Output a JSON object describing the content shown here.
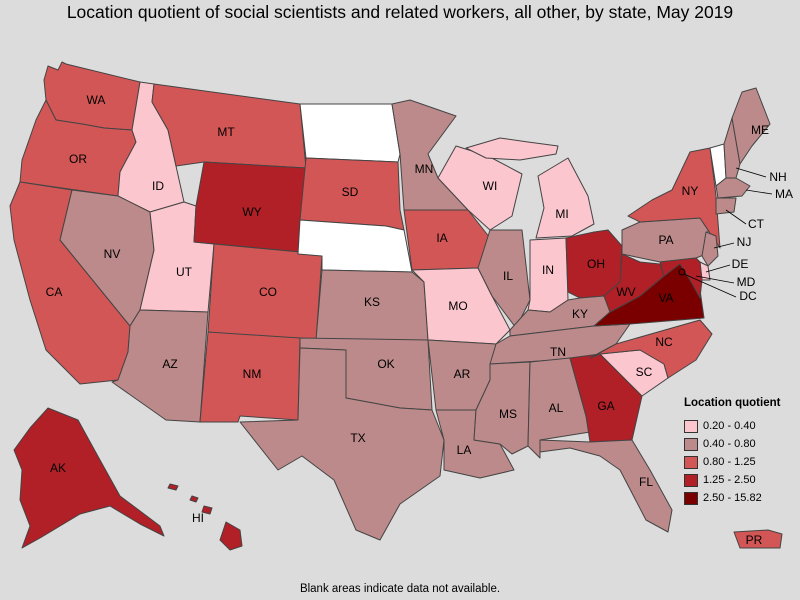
{
  "title": "Location quotient of social scientists and related workers, all other, by state, May 2019",
  "footnote": "Blank areas indicate data not available.",
  "colors": {
    "c1": "#fcc6cf",
    "c2": "#bc8a8a",
    "c3": "#d35656",
    "c4": "#b11f27",
    "c5": "#7a0000",
    "nodata": "#ffffff"
  },
  "legend": {
    "title": "Location quotient",
    "items": [
      {
        "label": "0.20 - 0.40",
        "color": "#fcc6cf"
      },
      {
        "label": "0.40 - 0.80",
        "color": "#bc8a8a"
      },
      {
        "label": "0.80 - 1.25",
        "color": "#d35656"
      },
      {
        "label": "1.25 - 2.50",
        "color": "#b11f27"
      },
      {
        "label": "2.50 - 15.82",
        "color": "#7a0000"
      }
    ]
  },
  "states": {
    "WA": {
      "label": "WA",
      "class": "0.80 - 1.25"
    },
    "OR": {
      "label": "OR",
      "class": "0.80 - 1.25"
    },
    "CA": {
      "label": "CA",
      "class": "0.80 - 1.25"
    },
    "ID": {
      "label": "ID",
      "class": "0.20 - 0.40"
    },
    "NV": {
      "label": "NV",
      "class": "0.40 - 0.80"
    },
    "UT": {
      "label": "UT",
      "class": "0.20 - 0.40"
    },
    "AZ": {
      "label": "AZ",
      "class": "0.40 - 0.80"
    },
    "MT": {
      "label": "MT",
      "class": "0.80 - 1.25"
    },
    "WY": {
      "label": "WY",
      "class": "1.25 - 2.50"
    },
    "CO": {
      "label": "CO",
      "class": "0.80 - 1.25"
    },
    "NM": {
      "label": "NM",
      "class": "0.80 - 1.25"
    },
    "ND": {
      "label": "",
      "class": "none"
    },
    "SD": {
      "label": "SD",
      "class": "0.80 - 1.25"
    },
    "NE": {
      "label": "",
      "class": "none"
    },
    "KS": {
      "label": "KS",
      "class": "0.40 - 0.80"
    },
    "OK": {
      "label": "OK",
      "class": "0.40 - 0.80"
    },
    "TX": {
      "label": "TX",
      "class": "0.40 - 0.80"
    },
    "MN": {
      "label": "MN",
      "class": "0.40 - 0.80"
    },
    "IA": {
      "label": "IA",
      "class": "0.80 - 1.25"
    },
    "MO": {
      "label": "MO",
      "class": "0.20 - 0.40"
    },
    "AR": {
      "label": "AR",
      "class": "0.40 - 0.80"
    },
    "LA": {
      "label": "LA",
      "class": "0.40 - 0.80"
    },
    "WI": {
      "label": "WI",
      "class": "0.20 - 0.40"
    },
    "IL": {
      "label": "IL",
      "class": "0.40 - 0.80"
    },
    "MI": {
      "label": "MI",
      "class": "0.20 - 0.40"
    },
    "IN": {
      "label": "IN",
      "class": "0.20 - 0.40"
    },
    "OH": {
      "label": "OH",
      "class": "1.25 - 2.50"
    },
    "KY": {
      "label": "KY",
      "class": "0.40 - 0.80"
    },
    "TN": {
      "label": "TN",
      "class": "0.40 - 0.80"
    },
    "MS": {
      "label": "MS",
      "class": "0.40 - 0.80"
    },
    "AL": {
      "label": "AL",
      "class": "0.40 - 0.80"
    },
    "GA": {
      "label": "GA",
      "class": "1.25 - 2.50"
    },
    "FL": {
      "label": "FL",
      "class": "0.40 - 0.80"
    },
    "SC": {
      "label": "SC",
      "class": "0.20 - 0.40"
    },
    "NC": {
      "label": "NC",
      "class": "0.80 - 1.25"
    },
    "VA": {
      "label": "VA",
      "class": "2.50 - 15.82"
    },
    "WV": {
      "label": "WV",
      "class": "1.25 - 2.50"
    },
    "PA": {
      "label": "PA",
      "class": "0.40 - 0.80"
    },
    "NY": {
      "label": "NY",
      "class": "0.80 - 1.25"
    },
    "ME": {
      "label": "ME",
      "class": "0.40 - 0.80"
    },
    "VT": {
      "label": "",
      "class": "none"
    },
    "NH": {
      "label": "NH",
      "class": "0.40 - 0.80"
    },
    "MA": {
      "label": "MA",
      "class": "0.40 - 0.80"
    },
    "CT": {
      "label": "CT",
      "class": "0.40 - 0.80"
    },
    "NJ": {
      "label": "NJ",
      "class": "0.40 - 0.80"
    },
    "DE": {
      "label": "DE",
      "class": "0.20 - 0.40"
    },
    "MD": {
      "label": "MD",
      "class": "1.25 - 2.50"
    },
    "DC": {
      "label": "DC",
      "class": "2.50 - 15.82"
    },
    "AK": {
      "label": "AK",
      "class": "1.25 - 2.50"
    },
    "HI": {
      "label": "HI",
      "class": "1.25 - 2.50"
    },
    "PR": {
      "label": "PR",
      "class": "0.80 - 1.25"
    }
  }
}
